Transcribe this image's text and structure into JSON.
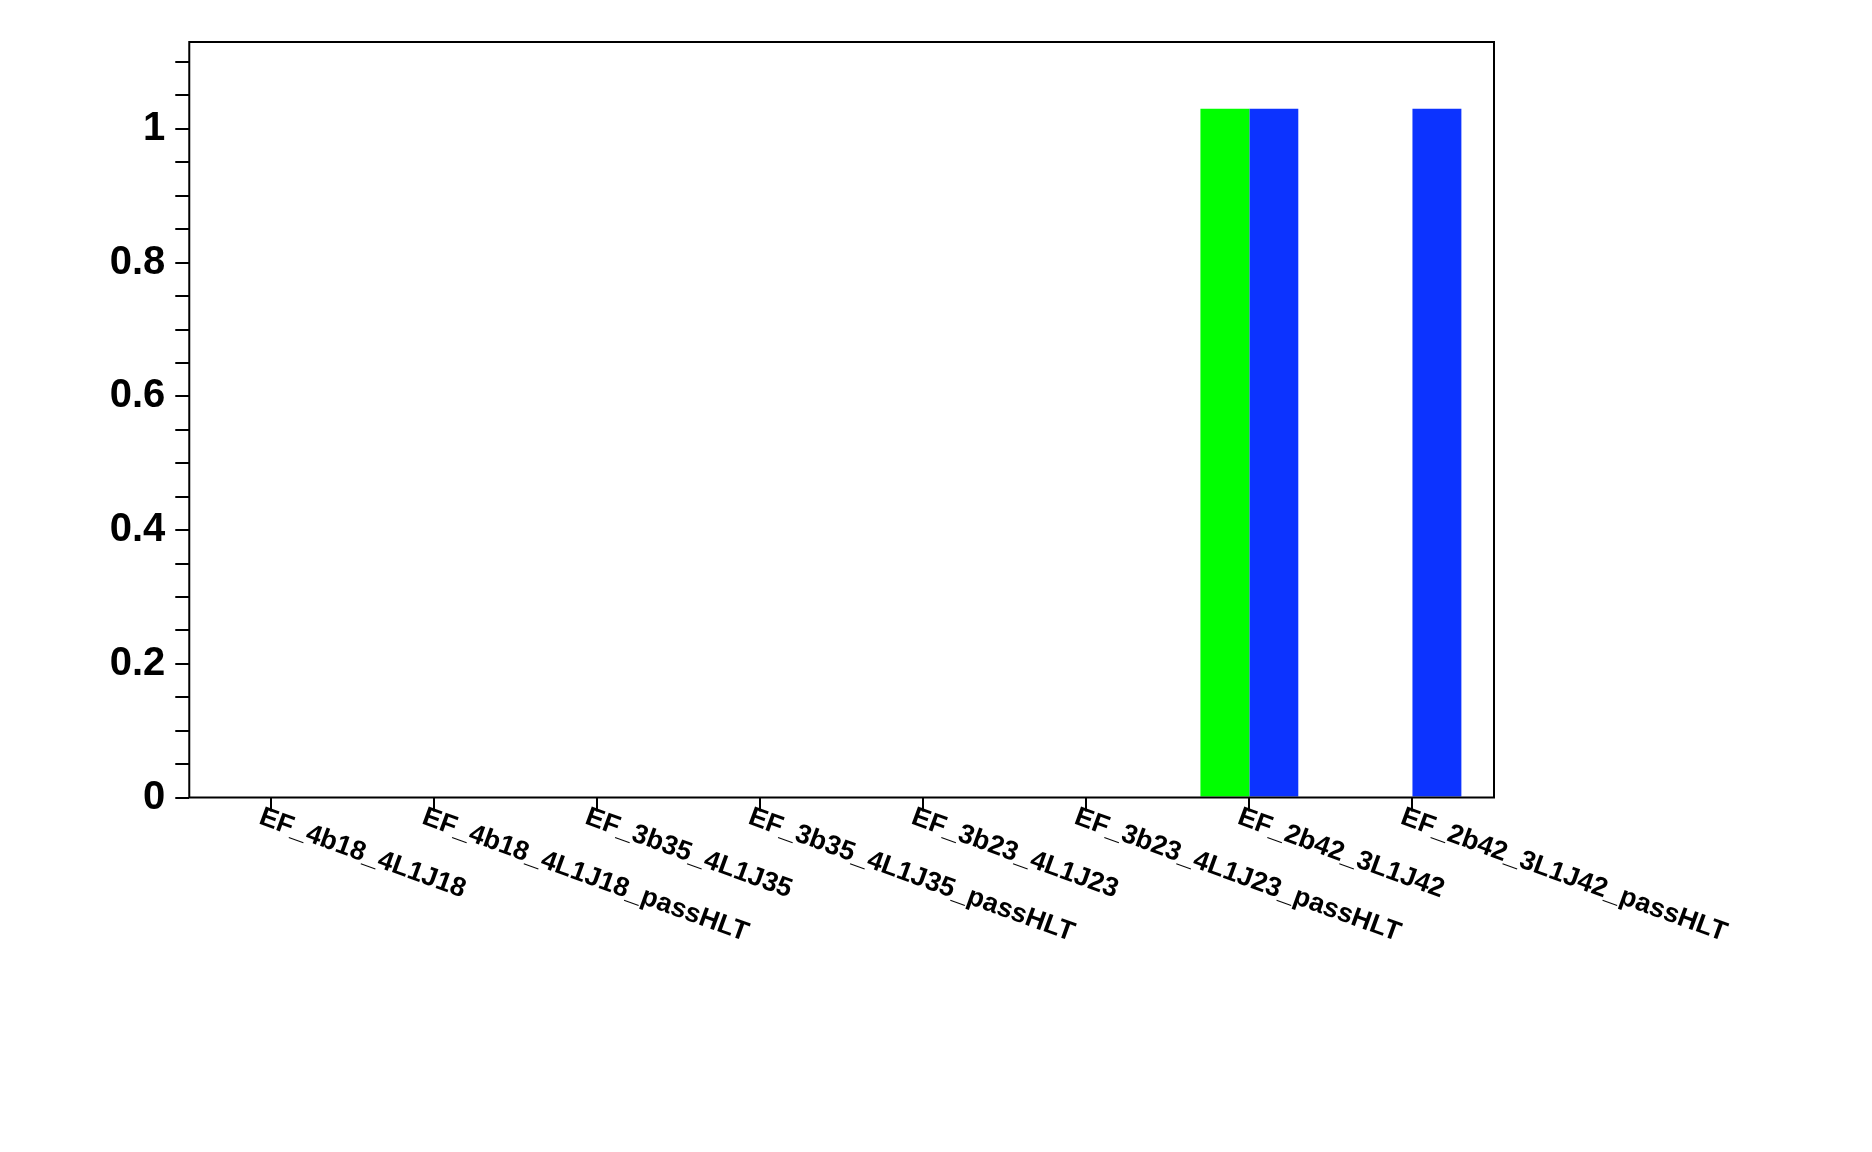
{
  "chart_data": {
    "type": "bar",
    "categories": [
      "EF_4b18_4L1J18",
      "EF_4b18_4L1J18_passHLT",
      "EF_3b35_4L1J35",
      "EF_3b35_4L1J35_passHLT",
      "EF_3b23_4L1J23",
      "EF_3b23_4L1J23_passHLT",
      "EF_2b42_3L1J42",
      "EF_2b42_3L1J42_passHLT"
    ],
    "series": [
      {
        "color": "#00ff00",
        "values": [
          0,
          0,
          0,
          0,
          0,
          0,
          1.03,
          0
        ]
      },
      {
        "color": "#0c33ff",
        "values": [
          0,
          0,
          0,
          0,
          0,
          0,
          1.03,
          1.03
        ]
      }
    ],
    "ylim": [
      0,
      1.13
    ],
    "yticks": [
      0,
      {
        "value": 0.05,
        "label": null
      },
      {
        "value": 0.1,
        "label": null
      },
      {
        "value": 0.15,
        "label": null
      },
      0.2,
      {
        "value": 0.25,
        "label": null
      },
      {
        "value": 0.3,
        "label": null
      },
      {
        "value": 0.35,
        "label": null
      },
      0.4,
      {
        "value": 0.45,
        "label": null
      },
      {
        "value": 0.5,
        "label": null
      },
      {
        "value": 0.55,
        "label": null
      },
      0.6,
      {
        "value": 0.65,
        "label": null
      },
      {
        "value": 0.7,
        "label": null
      },
      {
        "value": 0.75,
        "label": null
      },
      0.8,
      {
        "value": 0.85,
        "label": null
      },
      {
        "value": 0.9,
        "label": null
      },
      {
        "value": 0.95,
        "label": null
      },
      1,
      {
        "value": 1.05,
        "label": null
      },
      {
        "value": 1.1,
        "label": null
      }
    ],
    "grid": false,
    "legend": false
  }
}
